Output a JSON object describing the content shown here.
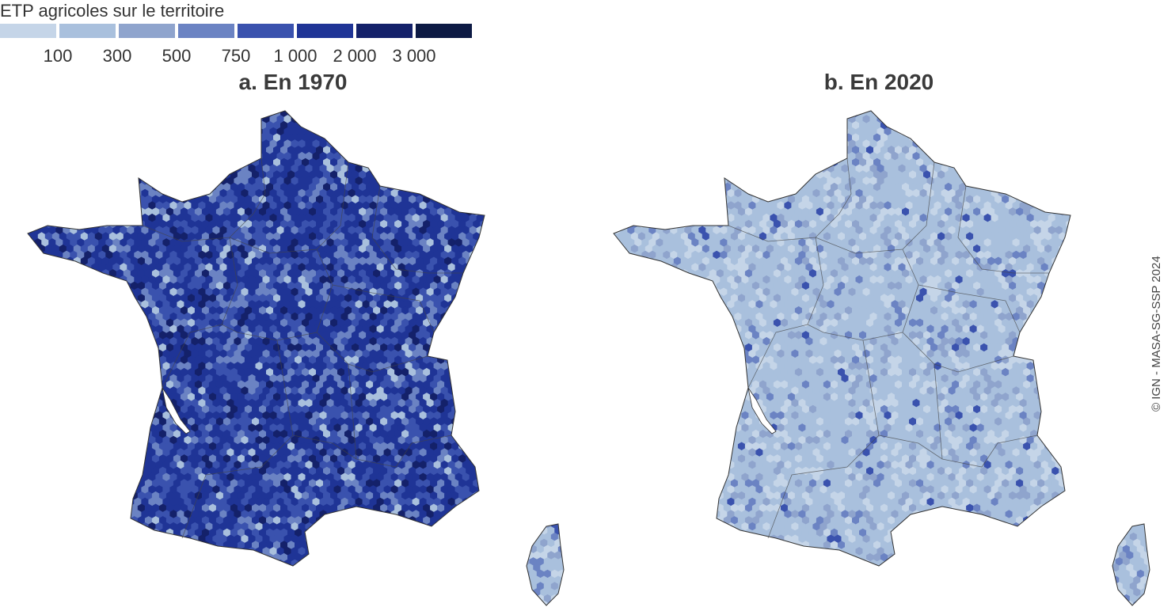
{
  "legend": {
    "title": "ETP agricoles sur le territoire",
    "colors": [
      "#c5d5e8",
      "#a9c0dd",
      "#8fa4cd",
      "#6b83c3",
      "#3a52ae",
      "#1f3496",
      "#14216a",
      "#0d1a44"
    ],
    "ticks": [
      "100",
      "300",
      "500",
      "750",
      "1 000",
      "2 000",
      "3 000"
    ]
  },
  "maps": [
    {
      "title": "a. En 1970",
      "palette": [
        "#1f3496",
        "#3a52ae",
        "#6b83c3",
        "#14216a",
        "#a9c0dd"
      ]
    },
    {
      "title": "b. En 2020",
      "palette": [
        "#a9c0dd",
        "#c5d5e8",
        "#8fa4cd",
        "#6b83c3",
        "#3a52ae"
      ]
    }
  ],
  "credit": "© IGN - MASA-SG-SSP 2024"
}
